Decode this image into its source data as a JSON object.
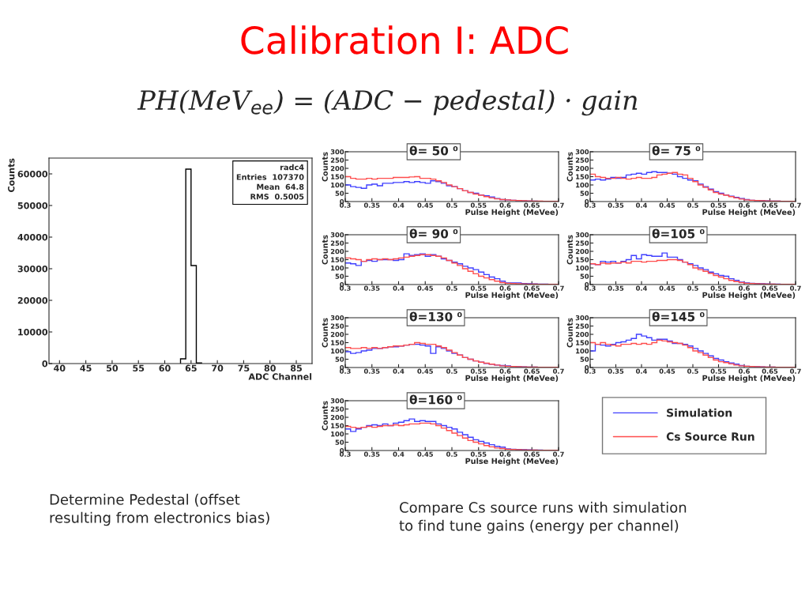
{
  "chart_data": [
    {
      "type": "histogram",
      "title": "Calibration I: ADC",
      "subtitle": "PH(MeV$_{ee}$) = (ADC − pedestal) · gain",
      "xlabel": "ADC Channel",
      "ylabel": "Counts",
      "bins": [
        63,
        64,
        65,
        66,
        67
      ],
      "values": [
        1500,
        61500,
        31000,
        200
      ],
      "color": "#000000",
      "xlim": [
        38,
        88
      ],
      "xticks": [
        40,
        45,
        50,
        55,
        60,
        65,
        70,
        75,
        80,
        85
      ],
      "ylim": [
        0,
        65000
      ],
      "yticks": [
        0,
        10000,
        20000,
        30000,
        40000,
        50000,
        60000
      ],
      "grid": false,
      "legend": false,
      "annotations": [
        "radc4",
        "Entries  107370",
        "Mean  64.8",
        "RMS  0.5005",
        "Determine Pedestal (offset\nresulting from electronics bias)"
      ]
    },
    {
      "type": "histogram",
      "title": "θ= 50 ⁰",
      "xlabel": "Pulse Height (MeVee)",
      "ylabel": "Counts",
      "bins": [
        0.3,
        0.31,
        0.32,
        0.33,
        0.34,
        0.35,
        0.36,
        0.37,
        0.38,
        0.39,
        0.4,
        0.41,
        0.42,
        0.43,
        0.44,
        0.45,
        0.46,
        0.47,
        0.48,
        0.49,
        0.5,
        0.51,
        0.52,
        0.53,
        0.54,
        0.55,
        0.56,
        0.57,
        0.58,
        0.59,
        0.6,
        0.61,
        0.62,
        0.63,
        0.64,
        0.65,
        0.66,
        0.67,
        0.68,
        0.69,
        0.7
      ],
      "xlim": [
        0.3,
        0.7
      ],
      "xticks": [
        0.3,
        0.35,
        0.4,
        0.45,
        0.5,
        0.55,
        0.6,
        0.65,
        0.7
      ],
      "ylim": [
        0,
        300
      ],
      "yticks": [
        0,
        50,
        100,
        150,
        200,
        250,
        300
      ],
      "grid": false,
      "legend": false,
      "annotations": [
        "Compare Cs source runs with simulation\nto find tune gains (energy per channel)"
      ],
      "series": [
        {
          "color": "#4040ff",
          "values": [
            100,
            90,
            85,
            80,
            100,
            105,
            95,
            110,
            110,
            115,
            115,
            120,
            115,
            120,
            115,
            110,
            125,
            120,
            110,
            95,
            90,
            78,
            65,
            55,
            50,
            40,
            35,
            28,
            18,
            12,
            10,
            8,
            6,
            4,
            3,
            3,
            2,
            2,
            2,
            2
          ]
        },
        {
          "color": "#ff4d4d",
          "values": [
            150,
            140,
            135,
            135,
            140,
            135,
            140,
            140,
            140,
            145,
            145,
            145,
            148,
            150,
            140,
            140,
            135,
            125,
            115,
            100,
            90,
            78,
            65,
            55,
            45,
            38,
            30,
            22,
            16,
            12,
            10,
            8,
            6,
            5,
            4,
            3,
            3,
            2,
            2,
            2
          ]
        }
      ]
    },
    {
      "type": "histogram",
      "title": "θ= 75 ⁰",
      "xlabel": "Pulse Height (MeVee)",
      "ylabel": "Counts",
      "bins": [
        0.3,
        0.31,
        0.32,
        0.33,
        0.34,
        0.35,
        0.36,
        0.37,
        0.38,
        0.39,
        0.4,
        0.41,
        0.42,
        0.43,
        0.44,
        0.45,
        0.46,
        0.47,
        0.48,
        0.49,
        0.5,
        0.51,
        0.52,
        0.53,
        0.54,
        0.55,
        0.56,
        0.57,
        0.58,
        0.59,
        0.6,
        0.61,
        0.62,
        0.63,
        0.64,
        0.65,
        0.66,
        0.67,
        0.68,
        0.69,
        0.7
      ],
      "xlim": [
        0.3,
        0.7
      ],
      "xticks": [
        0.3,
        0.35,
        0.4,
        0.45,
        0.5,
        0.55,
        0.6,
        0.65,
        0.7
      ],
      "ylim": [
        0,
        300
      ],
      "yticks": [
        0,
        50,
        100,
        150,
        200,
        250,
        300
      ],
      "grid": false,
      "legend": false,
      "series": [
        {
          "color": "#4040ff",
          "values": [
            130,
            135,
            130,
            135,
            145,
            140,
            145,
            160,
            165,
            170,
            165,
            175,
            180,
            175,
            175,
            170,
            165,
            150,
            140,
            130,
            125,
            105,
            90,
            75,
            60,
            50,
            40,
            32,
            25,
            18,
            12,
            8,
            6,
            5,
            4,
            3,
            3,
            2,
            2,
            2
          ]
        },
        {
          "color": "#ff4d4d",
          "values": [
            165,
            150,
            145,
            140,
            140,
            145,
            140,
            135,
            140,
            145,
            140,
            140,
            145,
            160,
            165,
            170,
            175,
            165,
            160,
            140,
            120,
            100,
            85,
            70,
            55,
            45,
            38,
            30,
            22,
            15,
            10,
            8,
            6,
            5,
            4,
            3,
            3,
            2,
            2,
            2
          ]
        }
      ]
    },
    {
      "type": "histogram",
      "title": "θ= 90 ⁰",
      "xlabel": "Pulse Height (MeVee)",
      "ylabel": "Counts",
      "bins": [
        0.3,
        0.31,
        0.32,
        0.33,
        0.34,
        0.35,
        0.36,
        0.37,
        0.38,
        0.39,
        0.4,
        0.41,
        0.42,
        0.43,
        0.44,
        0.45,
        0.46,
        0.47,
        0.48,
        0.49,
        0.5,
        0.51,
        0.52,
        0.53,
        0.54,
        0.55,
        0.56,
        0.57,
        0.58,
        0.59,
        0.6,
        0.61,
        0.62,
        0.63,
        0.64,
        0.65,
        0.66,
        0.67,
        0.68,
        0.69,
        0.7
      ],
      "xlim": [
        0.3,
        0.7
      ],
      "xticks": [
        0.3,
        0.35,
        0.4,
        0.45,
        0.5,
        0.55,
        0.6,
        0.65,
        0.7
      ],
      "ylim": [
        0,
        300
      ],
      "yticks": [
        0,
        50,
        100,
        150,
        200,
        250,
        300
      ],
      "grid": false,
      "legend": false,
      "series": [
        {
          "color": "#4040ff",
          "values": [
            130,
            125,
            115,
            140,
            145,
            140,
            150,
            150,
            150,
            145,
            150,
            185,
            175,
            180,
            185,
            170,
            180,
            170,
            155,
            145,
            135,
            125,
            110,
            100,
            90,
            75,
            60,
            45,
            35,
            20,
            10,
            10,
            10,
            6,
            5,
            4,
            3,
            3,
            2,
            2
          ]
        },
        {
          "color": "#ff4d4d",
          "values": [
            160,
            155,
            150,
            140,
            150,
            155,
            150,
            155,
            150,
            155,
            160,
            165,
            170,
            175,
            180,
            180,
            175,
            170,
            160,
            145,
            130,
            115,
            95,
            80,
            65,
            50,
            40,
            30,
            20,
            12,
            8,
            6,
            5,
            4,
            3,
            3,
            2,
            2,
            2,
            2
          ]
        }
      ]
    },
    {
      "type": "histogram",
      "title": "θ=105 ⁰",
      "xlabel": "Pulse Height (MeVee)",
      "ylabel": "Counts",
      "bins": [
        0.3,
        0.31,
        0.32,
        0.33,
        0.34,
        0.35,
        0.36,
        0.37,
        0.38,
        0.39,
        0.4,
        0.41,
        0.42,
        0.43,
        0.44,
        0.45,
        0.46,
        0.47,
        0.48,
        0.49,
        0.5,
        0.51,
        0.52,
        0.53,
        0.54,
        0.55,
        0.56,
        0.57,
        0.58,
        0.59,
        0.6,
        0.61,
        0.62,
        0.63,
        0.64,
        0.65,
        0.66,
        0.67,
        0.68,
        0.69,
        0.7
      ],
      "xlim": [
        0.3,
        0.7
      ],
      "xticks": [
        0.3,
        0.35,
        0.4,
        0.45,
        0.5,
        0.55,
        0.6,
        0.65,
        0.7
      ],
      "ylim": [
        0,
        300
      ],
      "yticks": [
        0,
        50,
        100,
        150,
        200,
        250,
        300
      ],
      "grid": false,
      "legend": false,
      "series": [
        {
          "color": "#4040ff",
          "values": [
            125,
            120,
            140,
            135,
            140,
            130,
            140,
            150,
            175,
            155,
            180,
            175,
            170,
            170,
            190,
            165,
            165,
            150,
            135,
            125,
            115,
            100,
            90,
            75,
            65,
            55,
            50,
            35,
            25,
            15,
            10,
            8,
            6,
            5,
            4,
            3,
            3,
            2,
            2,
            2
          ]
        },
        {
          "color": "#ff4d4d",
          "values": [
            125,
            120,
            130,
            125,
            130,
            130,
            135,
            130,
            140,
            140,
            135,
            140,
            140,
            145,
            145,
            150,
            150,
            145,
            135,
            120,
            100,
            90,
            80,
            68,
            55,
            45,
            35,
            25,
            18,
            12,
            8,
            6,
            5,
            4,
            3,
            3,
            2,
            2,
            2,
            2
          ]
        }
      ]
    },
    {
      "type": "histogram",
      "title": "θ=130 ⁰",
      "xlabel": "Pulse Height (MeVee)",
      "ylabel": "Counts",
      "bins": [
        0.3,
        0.31,
        0.32,
        0.33,
        0.34,
        0.35,
        0.36,
        0.37,
        0.38,
        0.39,
        0.4,
        0.41,
        0.42,
        0.43,
        0.44,
        0.45,
        0.46,
        0.47,
        0.48,
        0.49,
        0.5,
        0.51,
        0.52,
        0.53,
        0.54,
        0.55,
        0.56,
        0.57,
        0.58,
        0.59,
        0.6,
        0.61,
        0.62,
        0.63,
        0.64,
        0.65,
        0.66,
        0.67,
        0.68,
        0.69,
        0.7
      ],
      "xlim": [
        0.3,
        0.7
      ],
      "xticks": [
        0.3,
        0.35,
        0.4,
        0.45,
        0.5,
        0.55,
        0.6,
        0.65,
        0.7
      ],
      "ylim": [
        0,
        300
      ],
      "yticks": [
        0,
        50,
        100,
        150,
        200,
        250,
        300
      ],
      "grid": false,
      "legend": false,
      "series": [
        {
          "color": "#4040ff",
          "values": [
            95,
            85,
            90,
            100,
            105,
            115,
            115,
            120,
            125,
            125,
            130,
            135,
            140,
            140,
            135,
            130,
            85,
            125,
            115,
            100,
            85,
            75,
            60,
            50,
            40,
            32,
            25,
            20,
            15,
            12,
            10,
            6,
            5,
            4,
            3,
            3,
            2,
            2,
            2,
            2
          ]
        },
        {
          "color": "#ff4d4d",
          "values": [
            120,
            115,
            115,
            120,
            115,
            120,
            115,
            120,
            125,
            130,
            130,
            135,
            140,
            150,
            145,
            140,
            140,
            130,
            120,
            105,
            90,
            75,
            60,
            50,
            40,
            32,
            26,
            20,
            15,
            10,
            8,
            6,
            5,
            4,
            3,
            3,
            2,
            2,
            2,
            2
          ]
        }
      ]
    },
    {
      "type": "histogram",
      "title": "θ=145 ⁰",
      "xlabel": "Pulse Height (MeVee)",
      "ylabel": "Counts",
      "bins": [
        0.3,
        0.31,
        0.32,
        0.33,
        0.34,
        0.35,
        0.36,
        0.37,
        0.38,
        0.39,
        0.4,
        0.41,
        0.42,
        0.43,
        0.44,
        0.45,
        0.46,
        0.47,
        0.48,
        0.49,
        0.5,
        0.51,
        0.52,
        0.53,
        0.54,
        0.55,
        0.56,
        0.57,
        0.58,
        0.59,
        0.6,
        0.61,
        0.62,
        0.63,
        0.64,
        0.65,
        0.66,
        0.67,
        0.68,
        0.69,
        0.7
      ],
      "xlim": [
        0.3,
        0.7
      ],
      "xticks": [
        0.3,
        0.35,
        0.4,
        0.45,
        0.5,
        0.55,
        0.6,
        0.65,
        0.7
      ],
      "ylim": [
        0,
        300
      ],
      "yticks": [
        0,
        50,
        100,
        150,
        200,
        250,
        300
      ],
      "grid": false,
      "legend": false,
      "series": [
        {
          "color": "#4040ff",
          "values": [
            100,
            140,
            135,
            130,
            140,
            150,
            155,
            165,
            175,
            200,
            190,
            180,
            165,
            170,
            170,
            160,
            145,
            145,
            140,
            130,
            115,
            100,
            85,
            70,
            55,
            45,
            35,
            28,
            20,
            12,
            8,
            6,
            5,
            4,
            3,
            3,
            2,
            2,
            2,
            2
          ]
        },
        {
          "color": "#ff4d4d",
          "values": [
            150,
            140,
            150,
            140,
            135,
            130,
            140,
            140,
            145,
            140,
            145,
            140,
            150,
            165,
            160,
            155,
            150,
            145,
            135,
            120,
            100,
            90,
            75,
            60,
            45,
            35,
            30,
            22,
            15,
            10,
            8,
            6,
            5,
            4,
            3,
            3,
            2,
            2,
            2,
            2
          ]
        }
      ]
    },
    {
      "type": "histogram",
      "title": "θ=160 ⁰",
      "xlabel": "Pulse Height (MeVee)",
      "ylabel": "Counts",
      "bins": [
        0.3,
        0.31,
        0.32,
        0.33,
        0.34,
        0.35,
        0.36,
        0.37,
        0.38,
        0.39,
        0.4,
        0.41,
        0.42,
        0.43,
        0.44,
        0.45,
        0.46,
        0.47,
        0.48,
        0.49,
        0.5,
        0.51,
        0.52,
        0.53,
        0.54,
        0.55,
        0.56,
        0.57,
        0.58,
        0.59,
        0.6,
        0.61,
        0.62,
        0.63,
        0.64,
        0.65,
        0.66,
        0.67,
        0.68,
        0.69,
        0.7
      ],
      "xlim": [
        0.3,
        0.7
      ],
      "xticks": [
        0.3,
        0.35,
        0.4,
        0.45,
        0.5,
        0.55,
        0.6,
        0.65,
        0.7
      ],
      "ylim": [
        0,
        300
      ],
      "yticks": [
        0,
        50,
        100,
        150,
        200,
        250,
        300
      ],
      "grid": false,
      "legend": "right",
      "series": [
        {
          "name": "Simulation",
          "color": "#4040ff",
          "values": [
            130,
            115,
            130,
            140,
            150,
            155,
            150,
            160,
            150,
            165,
            170,
            180,
            190,
            175,
            180,
            175,
            175,
            160,
            150,
            140,
            130,
            110,
            95,
            80,
            65,
            55,
            45,
            35,
            25,
            20,
            10,
            8,
            6,
            5,
            4,
            3,
            3,
            2,
            2,
            2
          ]
        },
        {
          "name": "Cs Source Run",
          "color": "#ff4d4d",
          "values": [
            145,
            140,
            135,
            140,
            145,
            140,
            145,
            150,
            150,
            155,
            150,
            155,
            160,
            160,
            165,
            165,
            160,
            150,
            135,
            120,
            105,
            90,
            75,
            60,
            50,
            40,
            30,
            22,
            15,
            12,
            8,
            6,
            5,
            4,
            3,
            3,
            2,
            2,
            2,
            2
          ]
        }
      ]
    }
  ]
}
